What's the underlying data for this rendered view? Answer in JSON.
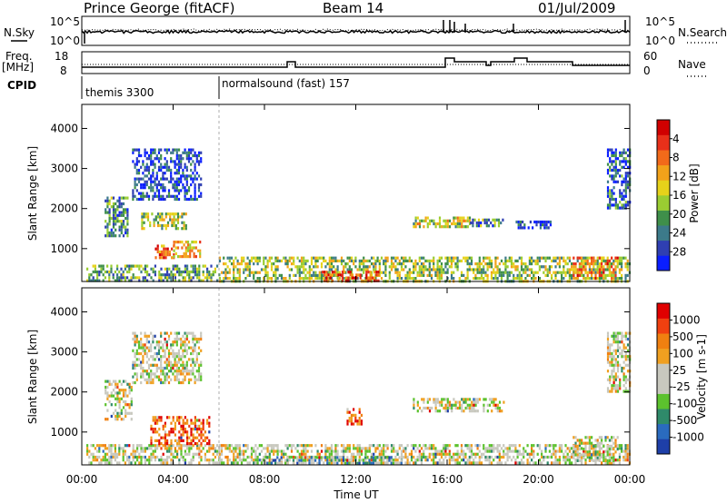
{
  "header": {
    "station": "Prince George (fitACF)",
    "beam": "Beam 14",
    "date": "01/Jul/2009"
  },
  "strip": {
    "left_labels": {
      "nsky": "N.Sky",
      "freq": "Freq.",
      "freq_unit": "[MHz]",
      "cpid": "CPID"
    },
    "right_labels": {
      "nsearch": "N.Search",
      "nave": "Nave"
    },
    "noise_ticks_left": [
      "10^5",
      "10^0"
    ],
    "noise_ticks_right": [
      "10^5",
      "10^0"
    ],
    "freq_ticks": [
      "18",
      "8"
    ],
    "nave_ticks": [
      "60",
      "0"
    ],
    "cpid_entries": [
      {
        "name": "themis 3300",
        "start_hour": 0
      },
      {
        "name": "normalsound (fast) 157",
        "start_hour": 6
      }
    ]
  },
  "chart_data": [
    {
      "type": "heatmap",
      "title": "",
      "ylabel": "Slant Range [km]",
      "xlabel": "Time UT",
      "x_ticks": [
        "00:00",
        "04:00",
        "08:00",
        "12:00",
        "16:00",
        "20:00",
        "00:00"
      ],
      "y_ticks": [
        1000,
        2000,
        3000,
        4000
      ],
      "ylim": [
        180,
        4600
      ],
      "xlim_hours": [
        0,
        24
      ],
      "colorbar": {
        "label": "Power [dB]",
        "ticks": [
          "4",
          "8",
          "12",
          "16",
          "20",
          "24",
          "28"
        ],
        "colors": [
          "#0a1eff",
          "#2f3fb2",
          "#3c7a8a",
          "#3f8f4a",
          "#9acd32",
          "#e6d21a",
          "#f2a21a",
          "#f26a1a",
          "#e8301a",
          "#d00000"
        ]
      },
      "regions": [
        {
          "t0": 0.2,
          "t1": 6.0,
          "r0": 200,
          "r1": 600,
          "level": 0.35
        },
        {
          "t0": 1.0,
          "t1": 2.0,
          "r0": 1300,
          "r1": 2300,
          "level": 0.3
        },
        {
          "t0": 2.2,
          "t1": 5.2,
          "r0": 2200,
          "r1": 3500,
          "level": 0.15
        },
        {
          "t0": 3.2,
          "t1": 4.0,
          "r0": 800,
          "r1": 1100,
          "level": 0.75
        },
        {
          "t0": 4.0,
          "t1": 5.2,
          "r0": 800,
          "r1": 1200,
          "level": 0.6
        },
        {
          "t0": 2.6,
          "t1": 4.6,
          "r0": 1500,
          "r1": 1900,
          "level": 0.45
        },
        {
          "t0": 6.0,
          "t1": 24.0,
          "r0": 200,
          "r1": 800,
          "level": 0.45
        },
        {
          "t0": 10.5,
          "t1": 13.0,
          "r0": 200,
          "r1": 450,
          "level": 0.8
        },
        {
          "t0": 14.5,
          "t1": 17.0,
          "r0": 1550,
          "r1": 1800,
          "level": 0.5
        },
        {
          "t0": 17.0,
          "t1": 18.5,
          "r0": 1600,
          "r1": 1750,
          "level": 0.3
        },
        {
          "t0": 19.0,
          "t1": 20.5,
          "r0": 1500,
          "r1": 1700,
          "level": 0.15
        },
        {
          "t0": 21.5,
          "t1": 23.5,
          "r0": 250,
          "r1": 800,
          "level": 0.7
        },
        {
          "t0": 23.0,
          "t1": 24.0,
          "r0": 2000,
          "r1": 3500,
          "level": 0.2
        }
      ]
    },
    {
      "type": "heatmap",
      "title": "",
      "ylabel": "Slant Range [km]",
      "xlabel": "Time UT",
      "x_ticks": [
        "00:00",
        "04:00",
        "08:00",
        "12:00",
        "16:00",
        "20:00",
        "00:00"
      ],
      "y_ticks": [
        1000,
        2000,
        3000,
        4000
      ],
      "ylim": [
        180,
        4600
      ],
      "xlim_hours": [
        0,
        24
      ],
      "colorbar": {
        "label": "Velocity [m s-1]",
        "ticks": [
          "1000",
          "500",
          "100",
          "25",
          "-25",
          "-100",
          "-500",
          "-1000"
        ],
        "colors": [
          "#1e3fa8",
          "#2a6bbf",
          "#2f8a6a",
          "#5cc22e",
          "#c8c8be",
          "#c8c8be",
          "#f0a020",
          "#f08010",
          "#f04010",
          "#e00000"
        ]
      },
      "regions": [
        {
          "t0": 0.2,
          "t1": 6.0,
          "r0": 200,
          "r1": 700,
          "level": 0.5
        },
        {
          "t0": 1.0,
          "t1": 2.2,
          "r0": 1300,
          "r1": 2300,
          "level": 0.5
        },
        {
          "t0": 2.2,
          "t1": 5.2,
          "r0": 2200,
          "r1": 3500,
          "level": 0.5
        },
        {
          "t0": 3.0,
          "t1": 5.6,
          "r0": 700,
          "r1": 1400,
          "level": 0.82
        },
        {
          "t0": 6.0,
          "t1": 24.0,
          "r0": 200,
          "r1": 700,
          "level": 0.5
        },
        {
          "t0": 8.0,
          "t1": 14.0,
          "r0": 200,
          "r1": 400,
          "level": 0.3
        },
        {
          "t0": 11.6,
          "t1": 12.3,
          "r0": 1200,
          "r1": 1600,
          "level": 0.8
        },
        {
          "t0": 14.5,
          "t1": 18.5,
          "r0": 1550,
          "r1": 1850,
          "level": 0.5
        },
        {
          "t0": 21.5,
          "t1": 23.5,
          "r0": 250,
          "r1": 900,
          "level": 0.5
        },
        {
          "t0": 23.0,
          "t1": 24.0,
          "r0": 2000,
          "r1": 3500,
          "level": 0.5
        }
      ]
    }
  ]
}
